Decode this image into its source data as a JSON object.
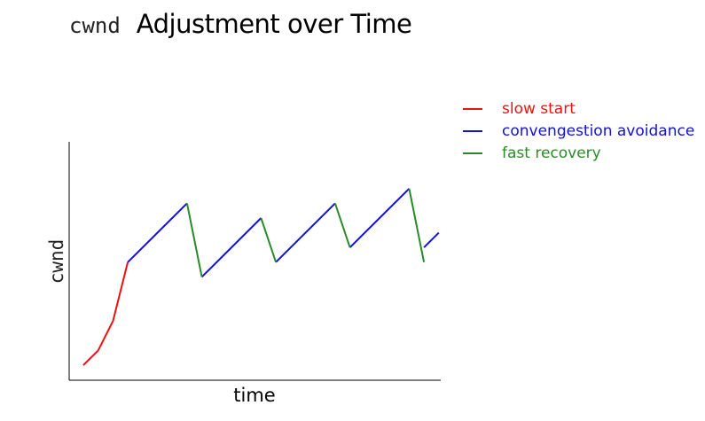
{
  "title": {
    "prefix": "cwnd",
    "main": "Adjustment over Time"
  },
  "chart_data": {
    "type": "line",
    "xlabel": "time",
    "ylabel": "cwnd",
    "xlim": [
      0,
      24
    ],
    "ylim": [
      0,
      16
    ],
    "legend_position": "right",
    "series": [
      {
        "name": "slow start",
        "color": "#ee1111",
        "segments": [
          [
            [
              1,
              0.8
            ],
            [
              2,
              1.8
            ],
            [
              3,
              3.8
            ],
            [
              4,
              7.8
            ]
          ]
        ]
      },
      {
        "name": "convengestion avoidance",
        "color": "#1111dd",
        "segments": [
          [
            [
              4,
              7.8
            ],
            [
              8,
              11.8
            ]
          ],
          [
            [
              9,
              6.8
            ],
            [
              13,
              10.8
            ]
          ],
          [
            [
              14,
              7.8
            ],
            [
              18,
              11.8
            ]
          ],
          [
            [
              19,
              8.8
            ],
            [
              23,
              12.8
            ]
          ],
          [
            [
              24,
              8.8
            ],
            [
              25,
              9.8
            ]
          ]
        ]
      },
      {
        "name": "fast recovery",
        "color": "#2a8a2a",
        "segments": [
          [
            [
              8,
              11.8
            ],
            [
              9,
              6.8
            ]
          ],
          [
            [
              13,
              10.8
            ],
            [
              14,
              7.8
            ]
          ],
          [
            [
              18,
              11.8
            ],
            [
              19,
              8.8
            ]
          ],
          [
            [
              23,
              12.8
            ],
            [
              24,
              7.8
            ]
          ]
        ]
      }
    ]
  }
}
